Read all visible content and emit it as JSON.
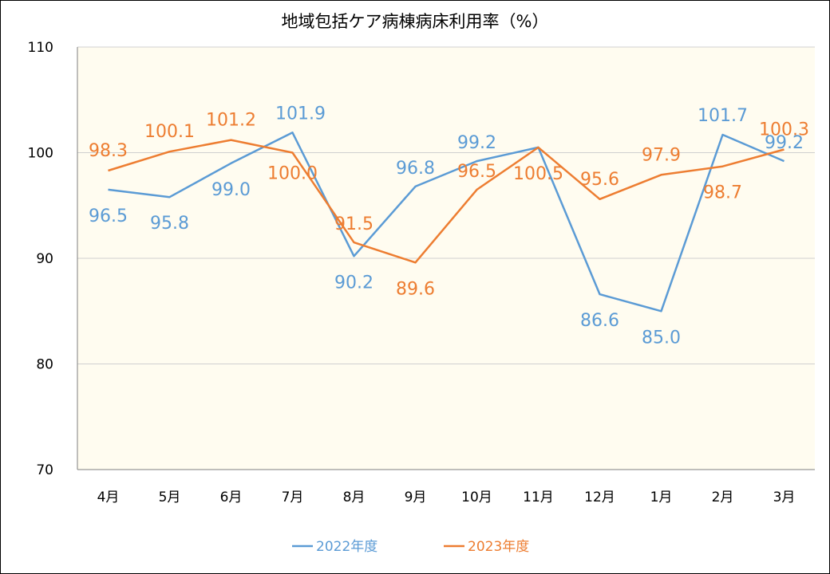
{
  "chart_data": {
    "type": "line",
    "title": "地域包括ケア病棟病床利用率（%）",
    "categories": [
      "4月",
      "5月",
      "6月",
      "7月",
      "8月",
      "9月",
      "10月",
      "11月",
      "12月",
      "1月",
      "2月",
      "3月"
    ],
    "ylim": [
      70,
      110
    ],
    "yticks": [
      70,
      80,
      90,
      100,
      110
    ],
    "grid": true,
    "legend_position": "bottom",
    "plot_background": "#fffcf0",
    "series": [
      {
        "name": "2022年度",
        "color": "#5b9bd5",
        "values": [
          96.5,
          95.8,
          99.0,
          101.9,
          90.2,
          96.8,
          99.2,
          100.5,
          86.6,
          85.0,
          101.7,
          99.2
        ],
        "labels": [
          "96.5",
          "95.8",
          "99.0",
          "101.9",
          "90.2",
          "96.8",
          "99.2",
          "",
          "86.6",
          "85.0",
          "101.7",
          "99.2"
        ]
      },
      {
        "name": "2023年度",
        "color": "#ed7d31",
        "values": [
          98.3,
          100.1,
          101.2,
          100.0,
          91.5,
          89.6,
          96.5,
          100.5,
          95.6,
          97.9,
          98.7,
          100.3
        ],
        "labels": [
          "98.3",
          "100.1",
          "101.2",
          "100.0",
          "91.5",
          "89.6",
          "96.5",
          "100.5",
          "95.6",
          "97.9",
          "98.7",
          "100.3"
        ]
      }
    ]
  }
}
